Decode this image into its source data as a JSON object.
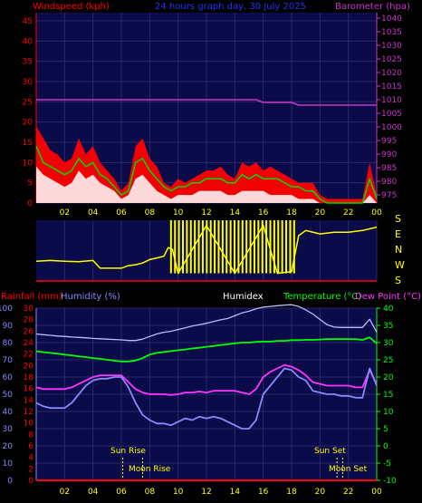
{
  "header": {
    "windspeed_label": "Windspeed (kph)",
    "title": "24 hours graph day, 30 July 2025",
    "barometer_label": "Barometer (hpa)"
  },
  "bottom_header": {
    "rainfall_label": "Rainfall (mm)",
    "humidity_label": "Humidity (%)",
    "humidex_label": "Humidex",
    "temperature_label": "Temperature (°C)",
    "dewpoint_label": "Dew Point (°C)"
  },
  "compass": [
    "S",
    "E",
    "N",
    "W",
    "S"
  ],
  "x_ticks": [
    "02",
    "04",
    "06",
    "08",
    "10",
    "12",
    "14",
    "16",
    "18",
    "20",
    "22",
    "00"
  ],
  "astro": {
    "sun_rise": "Sun Rise",
    "moon_rise": "Moon Rise",
    "sun_set": "Sun Set",
    "moon_set": "Moon Set"
  },
  "colors": {
    "panel_bg": "#0b0b4a",
    "grid": "#2a2a6a",
    "wind": "#ff0000",
    "gust": "#00dd00",
    "calm": "#ffffff",
    "barometer": "#cc33cc",
    "direction": "#ffff00",
    "humidity": "#8888ff",
    "humidex": "#bbbbff",
    "temperature": "#00ff00",
    "dewpoint": "#ff33ff",
    "rain": "#ff0000"
  },
  "chart_data": [
    {
      "type": "line",
      "name": "wind_and_pressure",
      "x_hours": [
        0,
        0.5,
        1,
        1.5,
        2,
        2.5,
        3,
        3.5,
        4,
        4.5,
        5,
        5.5,
        6,
        6.5,
        7,
        7.5,
        8,
        8.5,
        9,
        9.5,
        10,
        10.5,
        11,
        11.5,
        12,
        12.5,
        13,
        13.5,
        14,
        14.5,
        15,
        15.5,
        16,
        16.5,
        17,
        17.5,
        18,
        18.5,
        19,
        19.5,
        20,
        20.5,
        21,
        21.5,
        22,
        22.5,
        23,
        23.5,
        24
      ],
      "series": [
        {
          "values": [
            19,
            16,
            13,
            12,
            10,
            11,
            16,
            12,
            14,
            10,
            8,
            6,
            3,
            5,
            14,
            16,
            11,
            9,
            5,
            4,
            6,
            5,
            6,
            7,
            8,
            8,
            9,
            7,
            6,
            10,
            9,
            10,
            8,
            9,
            8,
            7,
            6,
            5,
            5,
            5,
            2,
            1,
            1,
            1,
            1,
            1,
            1,
            10,
            2
          ]
        },
        {
          "values": [
            14,
            10,
            9,
            8,
            7,
            8,
            11,
            9,
            10,
            7,
            6,
            4,
            2,
            3,
            10,
            11,
            8,
            6,
            4,
            3,
            4,
            4,
            5,
            5,
            6,
            6,
            6,
            5,
            5,
            7,
            6,
            7,
            6,
            6,
            6,
            5,
            4,
            4,
            3,
            3,
            1,
            0,
            0,
            0,
            0,
            0,
            0,
            6,
            1
          ]
        },
        {
          "values": [
            9,
            7,
            6,
            5,
            4,
            5,
            8,
            6,
            7,
            5,
            4,
            3,
            1,
            2,
            6,
            7,
            5,
            3,
            2,
            1,
            2,
            2,
            2,
            3,
            3,
            3,
            3,
            2,
            2,
            3,
            3,
            3,
            3,
            2,
            2,
            2,
            2,
            1,
            1,
            1,
            0,
            0,
            0,
            0,
            0,
            0,
            0,
            2,
            0
          ]
        },
        {
          "values": [
            1010,
            1010,
            1010,
            1010,
            1010,
            1010,
            1010,
            1010,
            1010,
            1010,
            1010,
            1010,
            1010,
            1010,
            1010,
            1010,
            1010,
            1010,
            1010,
            1010,
            1010,
            1010,
            1010,
            1010,
            1010,
            1010,
            1010,
            1010,
            1010,
            1010,
            1010,
            1010,
            1009,
            1009,
            1009,
            1009,
            1009,
            1008,
            1008,
            1008,
            1008,
            1008,
            1008,
            1008,
            1008,
            1008,
            1008,
            1008,
            1008
          ]
        }
      ],
      "y_left_ticks": [
        0,
        5,
        10,
        15,
        20,
        25,
        30,
        35,
        40,
        45
      ],
      "y_right_ticks": [
        975,
        980,
        985,
        990,
        995,
        1000,
        1005,
        1010,
        1015,
        1020,
        1025,
        1030,
        1035,
        1040
      ],
      "ylim_left": [
        0,
        47
      ],
      "ylim_right": [
        972,
        1042
      ]
    },
    {
      "type": "line",
      "name": "wind_direction",
      "x_hours": [
        0,
        1,
        2,
        3,
        4,
        4.5,
        5,
        6,
        6.5,
        7,
        7.5,
        8,
        8.5,
        9,
        9.3,
        9.6,
        10,
        12,
        14,
        16,
        17,
        18,
        18.5,
        19,
        20,
        21,
        22,
        23,
        24
      ],
      "series": [
        {
          "values": [
            120,
            125,
            120,
            118,
            125,
            80,
            80,
            80,
            95,
            100,
            110,
            130,
            140,
            150,
            200,
            190,
            50,
            330,
            50,
            330,
            50,
            60,
            270,
            300,
            280,
            290,
            290,
            300,
            320
          ]
        }
      ],
      "ylim": [
        0,
        360
      ]
    },
    {
      "type": "line",
      "name": "temperature_humidity",
      "x_hours": [
        0,
        0.5,
        1,
        1.5,
        2,
        2.5,
        3,
        3.5,
        4,
        4.5,
        5,
        5.5,
        6,
        6.5,
        7,
        7.5,
        8,
        8.5,
        9,
        9.5,
        10,
        10.5,
        11,
        11.5,
        12,
        12.5,
        13,
        13.5,
        14,
        14.5,
        15,
        15.5,
        16,
        16.5,
        17,
        17.5,
        18,
        18.5,
        19,
        19.5,
        20,
        20.5,
        21,
        21.5,
        22,
        22.5,
        23,
        23.5,
        24
      ],
      "series": [
        {
          "values": [
            45,
            43,
            42,
            42,
            42,
            45,
            50,
            55,
            58,
            59,
            59,
            60,
            60,
            54,
            45,
            38,
            35,
            33,
            33,
            32,
            34,
            36,
            35,
            37,
            36,
            37,
            36,
            34,
            32,
            30,
            30,
            35,
            50,
            55,
            60,
            65,
            64,
            60,
            58,
            52,
            51,
            50,
            50,
            49,
            49,
            48,
            48,
            65,
            55
          ]
        },
        {
          "values": [
            27.5,
            27.2,
            27,
            26.8,
            26.5,
            26.3,
            26,
            25.8,
            25.5,
            25.3,
            25,
            24.8,
            24.5,
            24.5,
            24.8,
            25.5,
            26.5,
            27,
            27.3,
            27.5,
            27.8,
            28,
            28.3,
            28.5,
            28.8,
            29,
            29.3,
            29.5,
            29.8,
            30,
            30,
            30.2,
            30.3,
            30.3,
            30.5,
            30.5,
            30.7,
            30.7,
            30.8,
            30.8,
            30.9,
            31,
            31,
            31,
            31,
            31,
            30.8,
            31.5,
            29.7
          ]
        },
        {
          "values": [
            17,
            16.5,
            16.5,
            16.5,
            16.5,
            17,
            18,
            19,
            20,
            20.5,
            20.5,
            20.5,
            20.5,
            18.5,
            16.5,
            15.5,
            15,
            15,
            15,
            14.8,
            15,
            15.5,
            15.5,
            15.8,
            15.5,
            16,
            16,
            16,
            16,
            15.5,
            15,
            16.5,
            20,
            21.5,
            22.5,
            23.5,
            23,
            22,
            20.5,
            18.5,
            18,
            17.5,
            17.5,
            17.5,
            17.5,
            17,
            17,
            22,
            18
          ]
        },
        {
          "values": [
            32.5,
            32.3,
            32.1,
            31.9,
            31.8,
            31.6,
            31.5,
            31.4,
            31.2,
            31.1,
            31,
            30.9,
            30.8,
            30.6,
            30.6,
            31,
            31.8,
            32.5,
            33,
            33.3,
            33.8,
            34.3,
            34.8,
            35.2,
            35.6,
            36.1,
            36.6,
            37,
            37.8,
            38.6,
            39.1,
            39.8,
            40.3,
            40.5,
            40.7,
            40.9,
            41,
            40.5,
            39.5,
            38.3,
            36.7,
            35.2,
            34.5,
            34.4,
            34.4,
            34.4,
            34.4,
            36.8,
            33
          ]
        }
      ],
      "rain_values_mm": [
        0,
        0,
        0,
        0,
        0,
        0,
        0,
        0,
        0,
        0,
        0,
        0,
        0,
        0,
        0,
        0,
        0,
        0,
        0,
        0,
        0,
        0,
        0,
        0,
        0,
        0,
        0,
        0,
        0,
        0,
        0,
        0,
        0,
        0,
        0,
        0,
        0,
        0,
        0,
        0,
        0,
        0,
        0,
        0,
        0,
        0,
        0,
        0,
        0
      ],
      "y_rain_ticks": [
        0,
        2,
        4,
        6,
        8,
        10,
        12,
        14,
        16,
        18,
        20,
        22,
        24,
        26,
        28,
        30
      ],
      "y_humidity_ticks": [
        0,
        10,
        20,
        30,
        40,
        50,
        60,
        70,
        80,
        90,
        100
      ],
      "y_temp_ticks": [
        -10,
        -5,
        0,
        5,
        10,
        15,
        20,
        25,
        30,
        35,
        40
      ],
      "ylim_rain": [
        0,
        30
      ],
      "ylim_humidity": [
        0,
        100
      ],
      "ylim_temp": [
        -10,
        40
      ],
      "sun_rise_hour": 6.1,
      "moon_rise_hour": 7.5,
      "sun_set_hour": 21.2,
      "moon_set_hour": 21.6
    }
  ]
}
